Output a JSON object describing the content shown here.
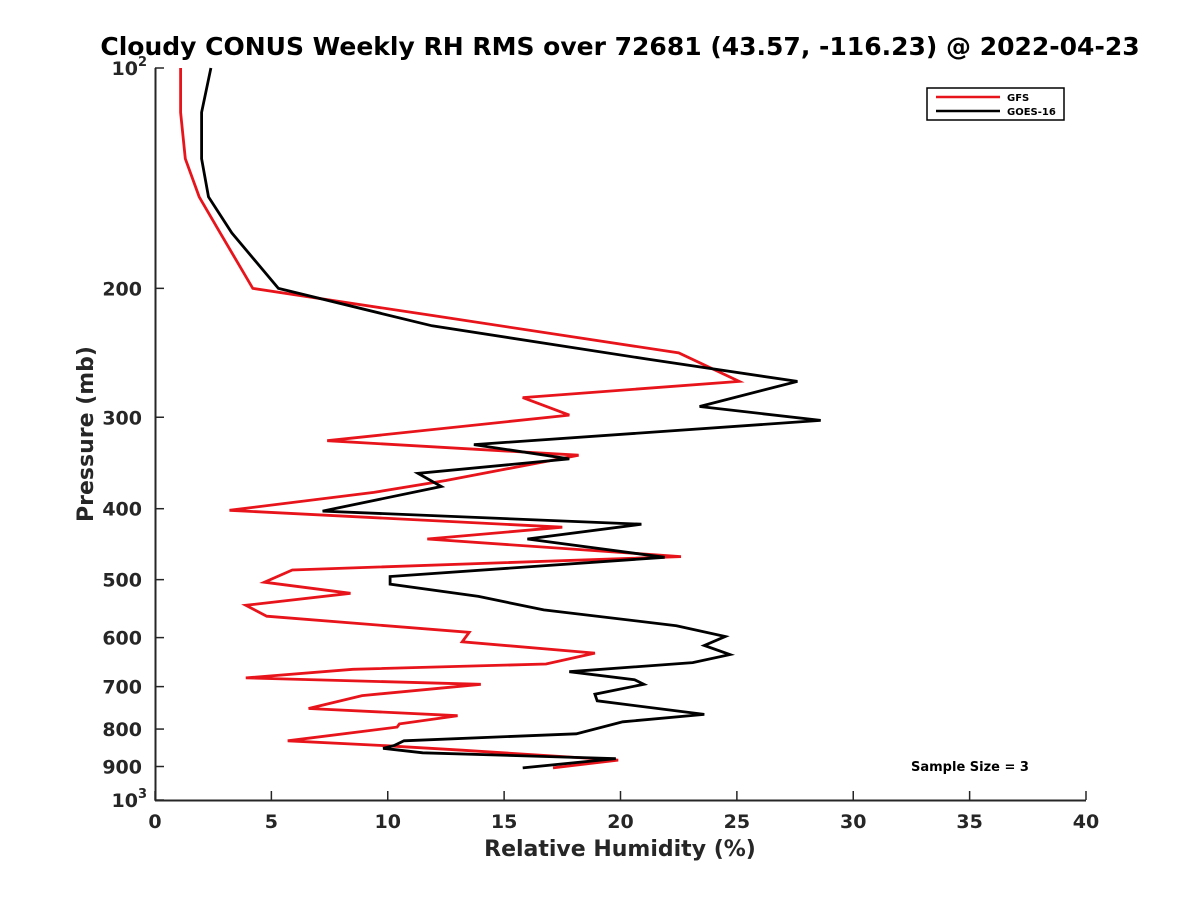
{
  "chart_data": {
    "type": "line",
    "title": "Cloudy CONUS Weekly RH RMS over 72681 (43.57, -116.23) @ 2022-04-23",
    "xlabel": "Relative Humidity (%)",
    "ylabel": "Pressure (mb)",
    "xlim": [
      0,
      40
    ],
    "ylim": [
      100,
      1000
    ],
    "y_scale": "log",
    "y_reversed": true,
    "x_ticks": [
      "0",
      "5",
      "10",
      "15",
      "20",
      "25",
      "30",
      "35",
      "40"
    ],
    "y_ticks": [
      {
        "value": 100,
        "base": "10",
        "exp": "2"
      },
      {
        "value": 200,
        "label": "200"
      },
      {
        "value": 300,
        "label": "300"
      },
      {
        "value": 400,
        "label": "400"
      },
      {
        "value": 500,
        "label": "500"
      },
      {
        "value": 600,
        "label": "600"
      },
      {
        "value": 700,
        "label": "700"
      },
      {
        "value": 800,
        "label": "800"
      },
      {
        "value": 900,
        "label": "900"
      },
      {
        "value": 1000,
        "base": "10",
        "exp": "3"
      }
    ],
    "grid": false,
    "legend_position": "top-right",
    "annotation": "Sample Size = 3",
    "series": [
      {
        "name": "GFS",
        "color": "#e8141b",
        "points": [
          [
            1.1,
            100
          ],
          [
            1.1,
            115
          ],
          [
            1.3,
            133
          ],
          [
            1.9,
            150
          ],
          [
            2.8,
            168
          ],
          [
            4.2,
            200
          ],
          [
            12.0,
            218
          ],
          [
            22.5,
            245
          ],
          [
            25.1,
            268
          ],
          [
            15.8,
            282
          ],
          [
            17.8,
            298
          ],
          [
            7.4,
            323
          ],
          [
            18.2,
            338
          ],
          [
            12.5,
            366
          ],
          [
            9.4,
            380
          ],
          [
            3.2,
            402
          ],
          [
            17.5,
            424
          ],
          [
            11.7,
            440
          ],
          [
            22.6,
            465
          ],
          [
            5.9,
            485
          ],
          [
            4.7,
            504
          ],
          [
            8.4,
            522
          ],
          [
            3.9,
            542
          ],
          [
            4.8,
            561
          ],
          [
            13.5,
            590
          ],
          [
            13.2,
            608
          ],
          [
            18.9,
            630
          ],
          [
            16.8,
            652
          ],
          [
            8.5,
            663
          ],
          [
            3.9,
            681
          ],
          [
            14.0,
            695
          ],
          [
            8.9,
            720
          ],
          [
            6.6,
            750
          ],
          [
            13.0,
            767
          ],
          [
            10.5,
            787
          ],
          [
            10.4,
            795
          ],
          [
            5.7,
            830
          ],
          [
            9.9,
            843
          ],
          [
            13.2,
            855
          ],
          [
            19.9,
            882
          ],
          [
            17.1,
            904
          ]
        ]
      },
      {
        "name": "GOES-16",
        "color": "#000000",
        "points": [
          [
            2.4,
            100
          ],
          [
            2.0,
            115
          ],
          [
            2.0,
            133
          ],
          [
            2.3,
            150
          ],
          [
            3.3,
            168
          ],
          [
            5.3,
            200
          ],
          [
            11.9,
            225
          ],
          [
            21.2,
            250
          ],
          [
            27.6,
            268
          ],
          [
            23.4,
            290
          ],
          [
            28.6,
            303
          ],
          [
            13.7,
            327
          ],
          [
            17.8,
            342
          ],
          [
            11.3,
            358
          ],
          [
            12.3,
            373
          ],
          [
            7.2,
            403
          ],
          [
            20.9,
            420
          ],
          [
            16.0,
            440
          ],
          [
            21.9,
            466
          ],
          [
            10.1,
            495
          ],
          [
            10.1,
            507
          ],
          [
            13.9,
            527
          ],
          [
            16.7,
            550
          ],
          [
            22.4,
            578
          ],
          [
            24.5,
            598
          ],
          [
            23.6,
            615
          ],
          [
            24.7,
            633
          ],
          [
            23.1,
            649
          ],
          [
            17.8,
            668
          ],
          [
            20.6,
            685
          ],
          [
            21.0,
            695
          ],
          [
            18.9,
            717
          ],
          [
            19.0,
            732
          ],
          [
            23.6,
            764
          ],
          [
            20.1,
            782
          ],
          [
            18.1,
            812
          ],
          [
            10.7,
            830
          ],
          [
            10.3,
            842
          ],
          [
            9.8,
            850
          ],
          [
            11.5,
            862
          ],
          [
            19.8,
            878
          ],
          [
            15.8,
            904
          ]
        ]
      }
    ]
  }
}
